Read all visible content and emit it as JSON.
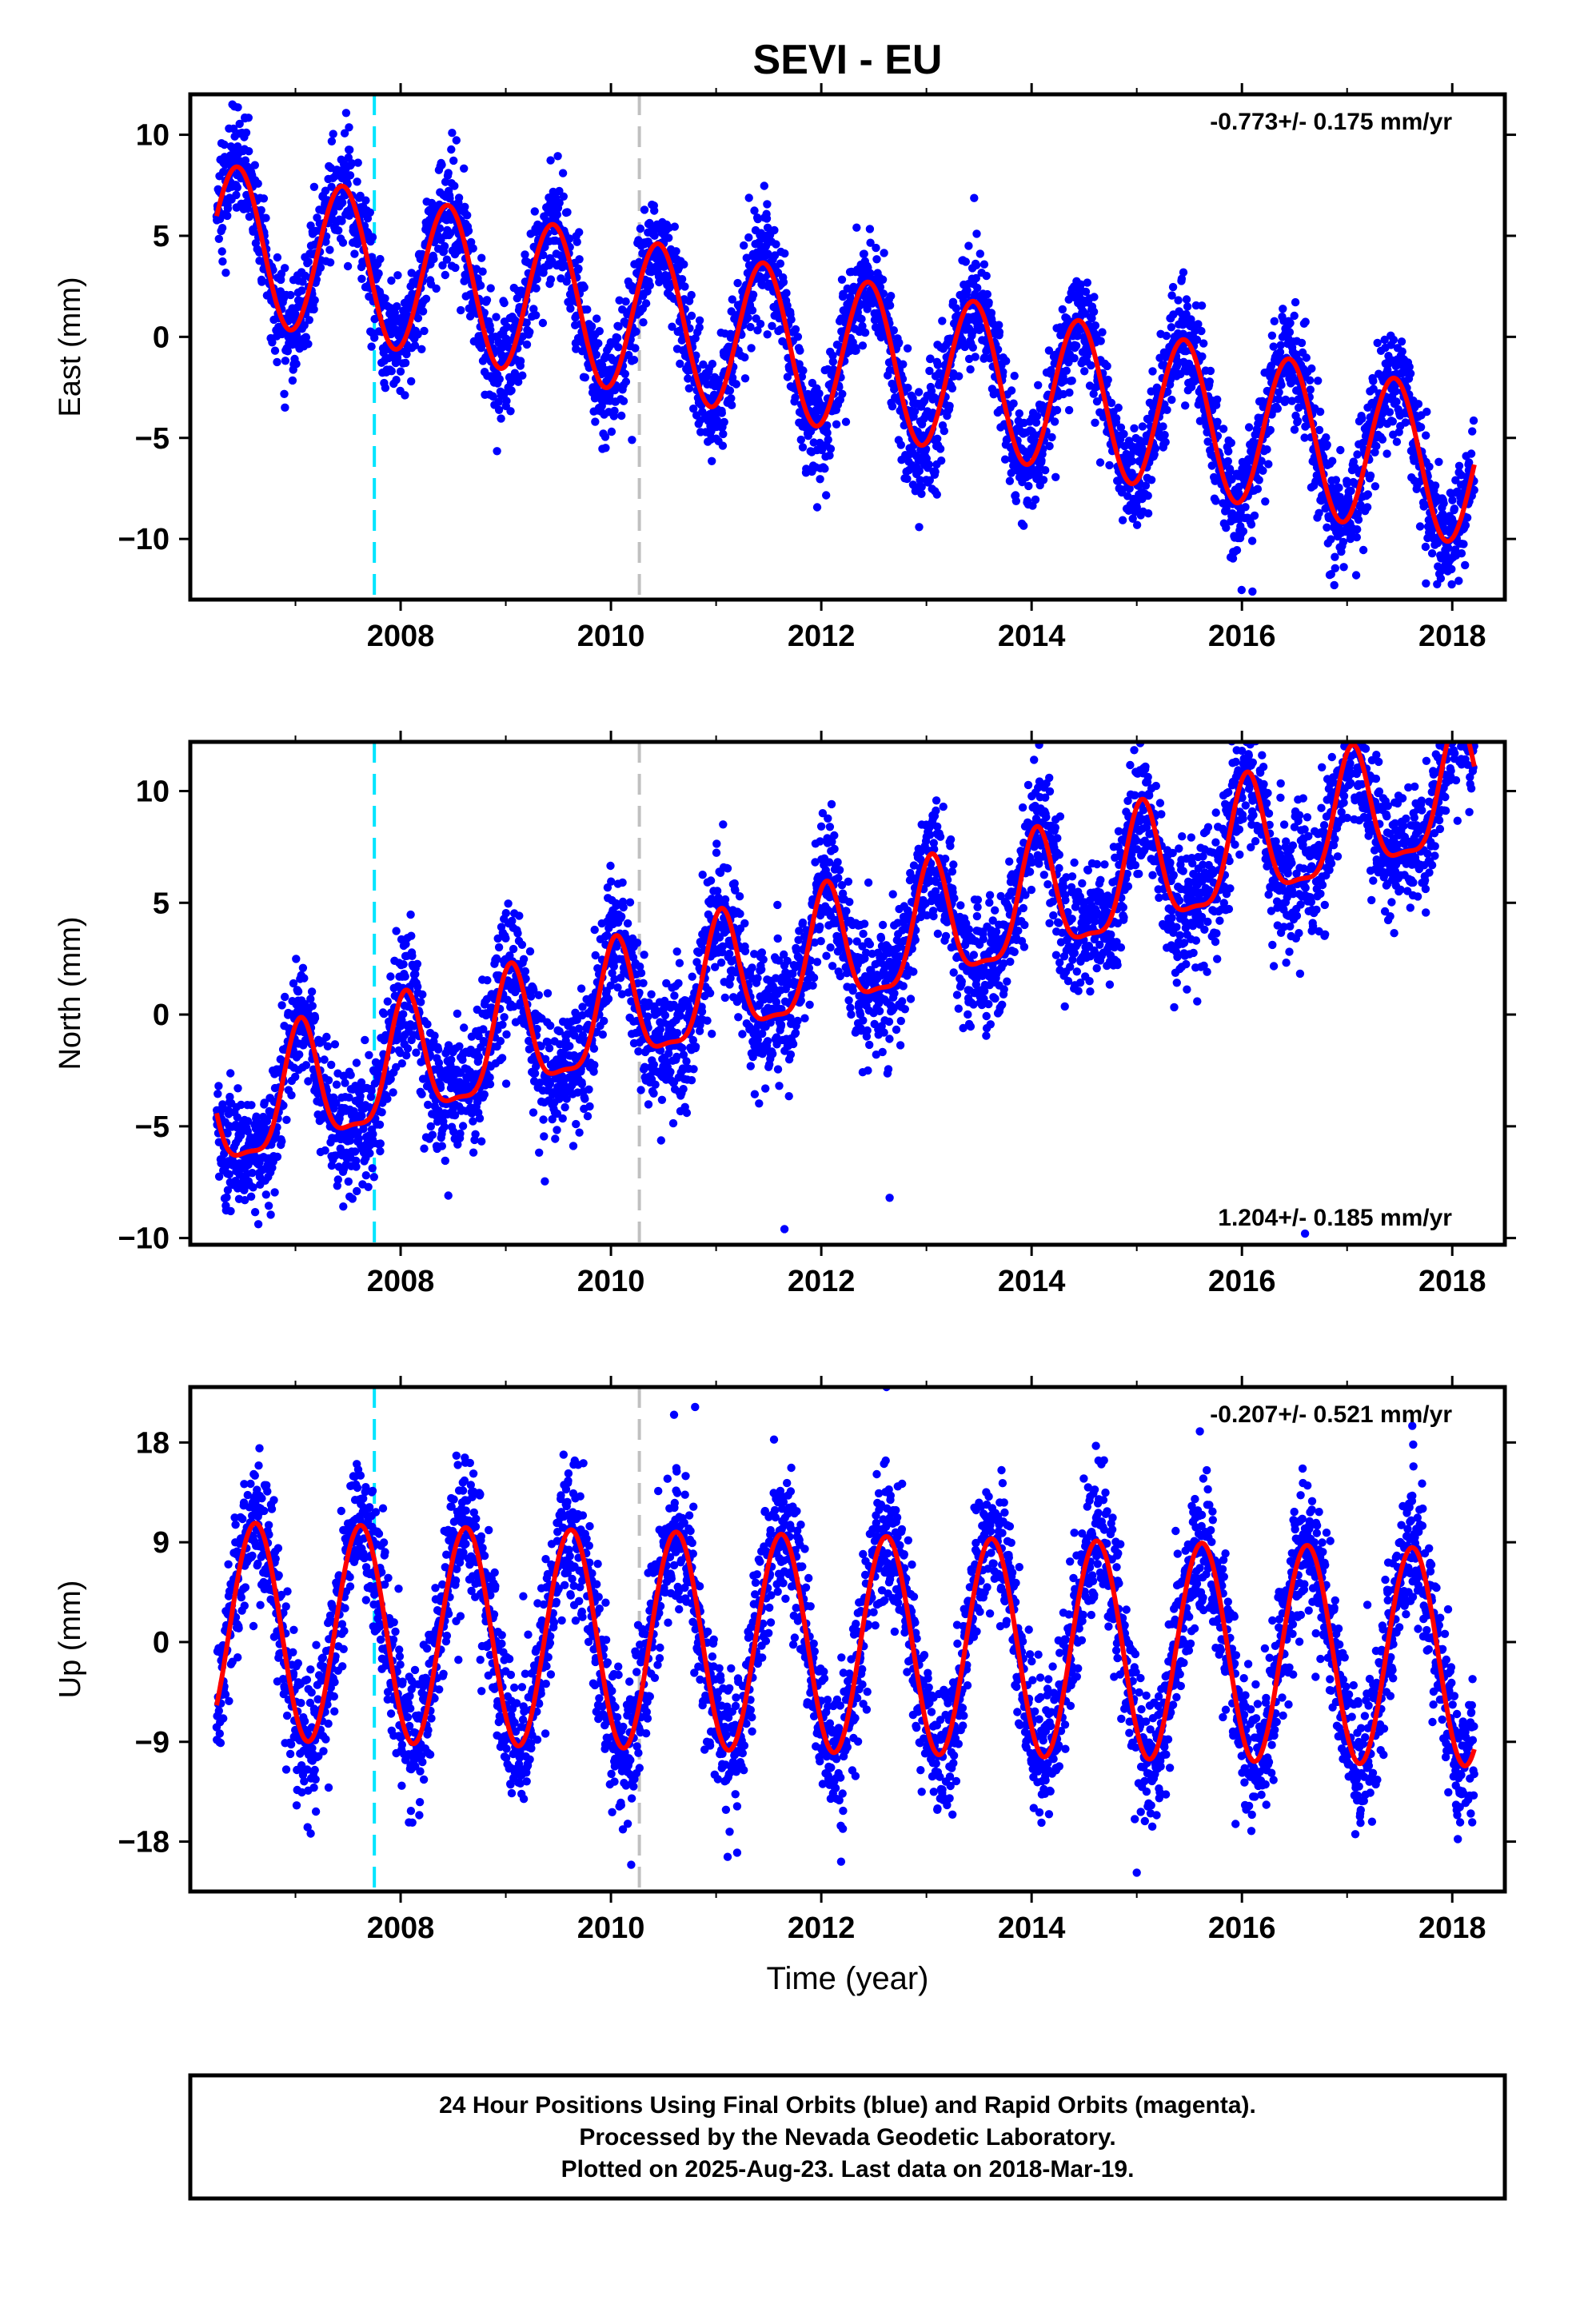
{
  "title": "SEVI - EU",
  "xlabel": "Time (year)",
  "footer": {
    "lines": [
      "24 Hour Positions Using Final Orbits (blue) and Rapid Orbits (magenta).",
      "Processed by the Nevada Geodetic Laboratory.",
      "Plotted on 2025-Aug-23. Last data on 2018-Mar-19."
    ]
  },
  "colors": {
    "points": "#0000ff",
    "model": "#ff0000",
    "vline_1": "#00e5ff",
    "vline_2": "#c0c0c0",
    "frame": "#000000"
  },
  "chart_data": [
    {
      "type": "scatter",
      "component": "east",
      "ylabel": "East (mm)",
      "rate_label": "-0.773+/- 0.175 mm/yr",
      "rate_position": "top-right",
      "xlim": [
        2006.0,
        2018.5
      ],
      "ylim": [
        -13.0,
        12.0
      ],
      "xticks": [
        2008,
        2010,
        2012,
        2014,
        2016,
        2018
      ],
      "xticks_minor": [
        2007,
        2009,
        2011,
        2013,
        2015,
        2017
      ],
      "yticks": [
        -10,
        -5,
        0,
        5,
        10
      ],
      "vlines": [
        2007.75,
        2010.27
      ],
      "grid": false,
      "data_range": [
        2006.25,
        2018.21
      ],
      "model": {
        "trend": {
          "a": 4.8,
          "slope": -0.95,
          "t0": 2006.25
        },
        "annual": {
          "amp": 3.8,
          "peak": 2006.45
        }
      },
      "outliers": [
        [
          2006.4,
          11.5
        ],
        [
          2006.9,
          -3.5
        ],
        [
          2008.1,
          -2.2
        ],
        [
          2009.85,
          -4.2
        ],
        [
          2010.2,
          -5.1
        ],
        [
          2016.1,
          -12.6
        ],
        [
          2017.75,
          -12.2
        ],
        [
          2013.1,
          -7.8
        ]
      ]
    },
    {
      "type": "scatter",
      "component": "north",
      "ylabel": "North (mm)",
      "rate_label": "1.204+/- 0.185 mm/yr",
      "rate_position": "bottom-right",
      "xlim": [
        2006.0,
        2018.5
      ],
      "ylim": [
        -10.3,
        12.2
      ],
      "xticks": [
        2008,
        2010,
        2012,
        2014,
        2016,
        2018
      ],
      "xticks_minor": [
        2007,
        2009,
        2011,
        2013,
        2015,
        2017
      ],
      "yticks": [
        -10,
        -5,
        0,
        5,
        10
      ],
      "vlines": [
        2007.75,
        2010.27
      ],
      "grid": false,
      "data_range": [
        2006.25,
        2018.21
      ],
      "model": {
        "trend": {
          "a": -4.6,
          "slope": 1.22,
          "t0": 2006.25
        },
        "annual": {
          "amp": 2.7,
          "peak": 2006.05
        },
        "semiannual": {
          "amp": 0.8,
          "peak": 2006.05
        }
      },
      "outliers": [
        [
          2016.0,
          11.8
        ],
        [
          2011.65,
          -9.6
        ],
        [
          2012.65,
          -8.2
        ],
        [
          2016.6,
          -9.8
        ]
      ]
    },
    {
      "type": "scatter",
      "component": "up",
      "ylabel": "Up (mm)",
      "rate_label": "-0.207+/- 0.521 mm/yr",
      "rate_position": "top-right",
      "xlim": [
        2006.0,
        2018.5
      ],
      "ylim": [
        -22.5,
        23.0
      ],
      "xticks": [
        2008,
        2010,
        2012,
        2014,
        2016,
        2018
      ],
      "xticks_minor": [
        2007,
        2009,
        2011,
        2013,
        2015,
        2017
      ],
      "yticks": [
        -18,
        -9,
        0,
        9,
        18
      ],
      "vlines": [
        2007.75,
        2010.27
      ],
      "grid": false,
      "data_range": [
        2006.25,
        2018.21
      ],
      "model": {
        "trend": {
          "a": 1.0,
          "slope": -0.2,
          "t0": 2006.25
        },
        "annual": {
          "amp": 9.8,
          "peak": 2006.62
        }
      },
      "outliers": [
        [
          2010.6,
          20.5
        ],
        [
          2010.8,
          21.2
        ],
        [
          2012.62,
          23.0
        ],
        [
          2011.2,
          -19.0
        ],
        [
          2015.0,
          -20.8
        ],
        [
          2017.62,
          19.5
        ],
        [
          2015.6,
          19.0
        ]
      ]
    }
  ]
}
